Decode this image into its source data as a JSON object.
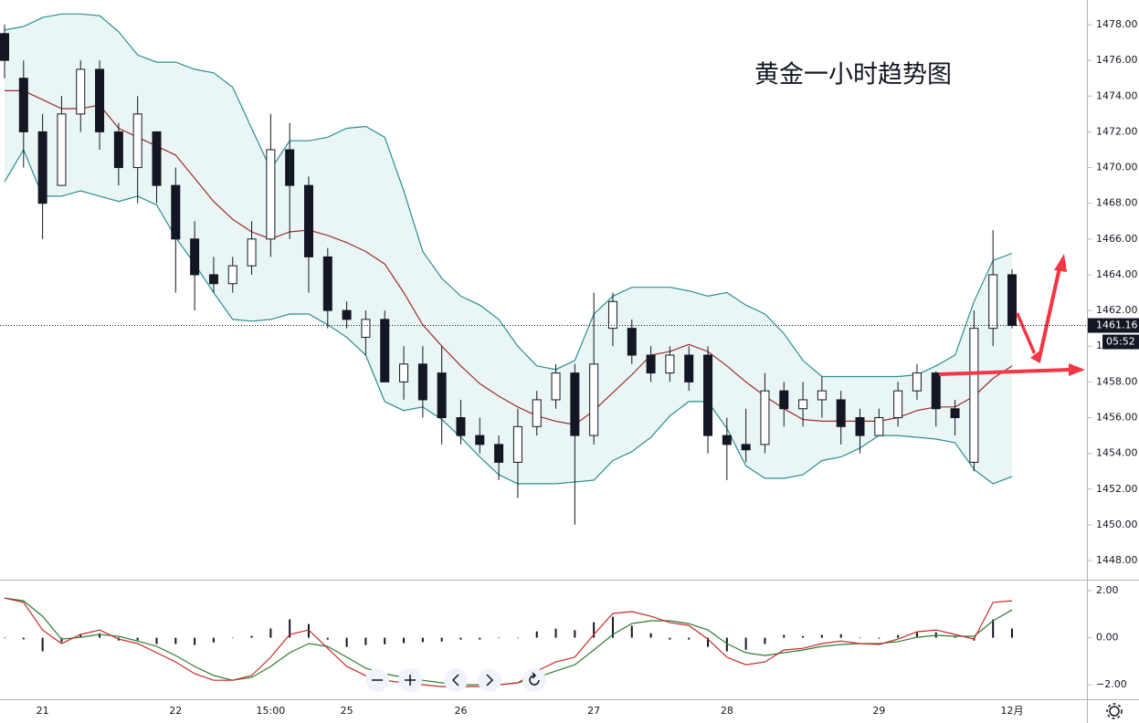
{
  "chart_data": [
    {
      "type": "candlestick",
      "title": "黄金一小时趋势图",
      "categories": [
        null,
        null,
        "21",
        null,
        null,
        null,
        null,
        null,
        null,
        "22",
        null,
        null,
        null,
        null,
        "15:00",
        null,
        null,
        null,
        "25",
        null,
        null,
        null,
        null,
        null,
        "26",
        null,
        null,
        null,
        null,
        null,
        null,
        "27",
        null,
        null,
        null,
        null,
        null,
        null,
        "28",
        null,
        null,
        null,
        null,
        null,
        null,
        null,
        "29",
        null,
        null,
        null,
        null,
        null,
        null,
        "12月"
      ],
      "ohlc": [
        [
          1477.5,
          1478,
          1475,
          1476
        ],
        [
          1475,
          1476,
          1470,
          1472
        ],
        [
          1472,
          1473,
          1466,
          1468
        ],
        [
          1469,
          1474,
          1469,
          1473
        ],
        [
          1473,
          1476,
          1472,
          1475.5
        ],
        [
          1475.5,
          1476,
          1471,
          1472
        ],
        [
          1472,
          1472.5,
          1469,
          1470
        ],
        [
          1470,
          1474,
          1468,
          1473
        ],
        [
          1472,
          1472,
          1468,
          1469
        ],
        [
          1469,
          1470,
          1463,
          1466
        ],
        [
          1466,
          1467,
          1462,
          1464
        ],
        [
          1464,
          1465,
          1463,
          1463.5
        ],
        [
          1463.5,
          1465,
          1463,
          1464.5
        ],
        [
          1464.5,
          1467,
          1464,
          1466
        ],
        [
          1466,
          1473,
          1465,
          1471
        ],
        [
          1471,
          1472.5,
          1466,
          1469
        ],
        [
          1469,
          1469.5,
          1463,
          1465
        ],
        [
          1465,
          1465.5,
          1461,
          1462
        ],
        [
          1462,
          1462.5,
          1461,
          1461.5
        ],
        [
          1460.5,
          1462,
          1459.5,
          1461.5
        ],
        [
          1461.5,
          1462,
          1458,
          1458
        ],
        [
          1458,
          1460,
          1457,
          1459
        ],
        [
          1459,
          1460,
          1456,
          1457
        ],
        [
          1458.5,
          1460,
          1454.5,
          1456
        ],
        [
          1456,
          1457,
          1454.5,
          1455
        ],
        [
          1455,
          1456,
          1454,
          1454.5
        ],
        [
          1454.5,
          1455,
          1452.5,
          1453.5
        ],
        [
          1453.5,
          1456.5,
          1451.5,
          1455.5
        ],
        [
          1455.5,
          1457.5,
          1455,
          1457
        ],
        [
          1457,
          1459,
          1456.5,
          1458.5
        ],
        [
          1458.5,
          1459,
          1450,
          1455
        ],
        [
          1455,
          1463,
          1454.5,
          1459
        ],
        [
          1461,
          1463,
          1460,
          1462.5
        ],
        [
          1461,
          1461.5,
          1459,
          1459.5
        ],
        [
          1459.5,
          1460,
          1458,
          1458.5
        ],
        [
          1458.5,
          1460,
          1458,
          1459.5
        ],
        [
          1459.5,
          1460,
          1457.5,
          1458
        ],
        [
          1459.5,
          1460,
          1454,
          1455
        ],
        [
          1455,
          1456,
          1452.5,
          1454.5
        ],
        [
          1454.5,
          1456.5,
          1453.5,
          1454.2
        ],
        [
          1454.5,
          1458.5,
          1454,
          1457.5
        ],
        [
          1457.5,
          1458,
          1455.5,
          1456.5
        ],
        [
          1456.5,
          1458,
          1455.5,
          1457
        ],
        [
          1457,
          1458.3,
          1456,
          1457.5
        ],
        [
          1457,
          1457.5,
          1454.5,
          1455.5
        ],
        [
          1456,
          1456.5,
          1454,
          1455
        ],
        [
          1455,
          1456.5,
          1455,
          1456
        ],
        [
          1456,
          1458,
          1455.5,
          1457.5
        ],
        [
          1457.5,
          1459,
          1457,
          1458.5
        ],
        [
          1458.5,
          1458.6,
          1455.5,
          1456.5
        ],
        [
          1456.5,
          1457,
          1455,
          1456
        ],
        [
          1453.5,
          1462,
          1453,
          1461
        ],
        [
          1461,
          1466.5,
          1460,
          1464
        ],
        [
          1464,
          1464.3,
          1461,
          1461.16
        ]
      ],
      "up_color": "#ffffff",
      "down_color": "#131722",
      "outline_color": "#131722",
      "bollinger": {
        "upper": [
          1477.7,
          1477.9,
          1478.4,
          1478.6,
          1478.6,
          1478.5,
          1477.6,
          1476.3,
          1475.9,
          1475.9,
          1475.5,
          1475.3,
          1474.5,
          1472.2,
          1469.9,
          1471.5,
          1471.5,
          1471.7,
          1472.2,
          1472.3,
          1471.7,
          1468.7,
          1465.3,
          1463.8,
          1462.8,
          1462.3,
          1461.5,
          1460,
          1458.9,
          1458.7,
          1459.2,
          1461.8,
          1462.8,
          1463.3,
          1463.3,
          1463.3,
          1463.1,
          1462.8,
          1463,
          1462.3,
          1461.8,
          1460.7,
          1459.2,
          1458.3,
          1458.3,
          1458.3,
          1458.3,
          1458.3,
          1458.4,
          1458.9,
          1459.5,
          1462.5,
          1464.8,
          1465.2
        ],
        "middle": [
          1474.3,
          1474.3,
          1473.8,
          1473.3,
          1473.3,
          1473.5,
          1472.2,
          1471.7,
          1471.2,
          1470.7,
          1469.4,
          1468.1,
          1467.1,
          1466.4,
          1466,
          1466.4,
          1466.5,
          1466.2,
          1465.8,
          1465.3,
          1464.6,
          1463,
          1461.2,
          1460,
          1458.9,
          1457.9,
          1457.2,
          1456.6,
          1456.1,
          1455.8,
          1455.6,
          1456.4,
          1457.4,
          1458.4,
          1459.5,
          1459.7,
          1460.1,
          1459.7,
          1458.9,
          1458,
          1457.2,
          1456.5,
          1455.9,
          1455.8,
          1455.8,
          1455.8,
          1455.8,
          1456,
          1456.4,
          1456.6,
          1456.6,
          1457.2,
          1458.2,
          1458.9
        ],
        "lower": [
          1469.2,
          1471,
          1468.4,
          1468.4,
          1468.7,
          1468.4,
          1468.1,
          1468.4,
          1467.9,
          1466.1,
          1464.6,
          1463,
          1461.5,
          1461.4,
          1461.5,
          1461.8,
          1461.8,
          1461.2,
          1460.5,
          1459.5,
          1456.9,
          1456.4,
          1456.6,
          1455.9,
          1454.9,
          1453.8,
          1452.8,
          1452.3,
          1452.3,
          1452.3,
          1452.4,
          1452.5,
          1453.6,
          1454.1,
          1454.9,
          1456.1,
          1456.9,
          1456.9,
          1455.4,
          1453.3,
          1452.6,
          1452.6,
          1452.8,
          1453.6,
          1453.8,
          1454.3,
          1455,
          1455,
          1454.9,
          1454.8,
          1454.6,
          1453.1,
          1452.3,
          1452.7
        ],
        "band_color": "#2b8f8f",
        "fill_color": "#eaf6f6",
        "middle_color": "#9c2b2b"
      },
      "ylim": [
        1446.93,
        1479.38
      ],
      "yticks": [
        {
          "value": 1448,
          "label": "1448.00"
        },
        {
          "value": 1450,
          "label": "1450.00"
        },
        {
          "value": 1452,
          "label": "1452.00"
        },
        {
          "value": 1454,
          "label": "1454.00"
        },
        {
          "value": 1456,
          "label": "1456.00"
        },
        {
          "value": 1458,
          "label": "1458.00"
        },
        {
          "value": 1460,
          "label": "1460.00"
        },
        {
          "value": 1462,
          "label": "1462.00"
        },
        {
          "value": 1464,
          "label": "1464.00"
        },
        {
          "value": 1466,
          "label": "1466.00"
        },
        {
          "value": 1468,
          "label": "1468.00"
        },
        {
          "value": 1470,
          "label": "1470.00"
        },
        {
          "value": 1472,
          "label": "1472.00"
        },
        {
          "value": 1474,
          "label": "1474.00"
        },
        {
          "value": 1476,
          "label": "1476.00"
        },
        {
          "value": 1478,
          "label": "1478.00"
        }
      ],
      "last_price": 1461.16,
      "countdown": "05:52"
    },
    {
      "type": "macd",
      "macd": [
        1.69,
        1.5,
        0.33,
        -0.25,
        0.14,
        0.33,
        -0.06,
        -0.25,
        -0.64,
        -1.03,
        -1.53,
        -1.81,
        -1.81,
        -1.61,
        -0.83,
        0.14,
        0.33,
        -0.45,
        -1.22,
        -1.61,
        -1.81,
        -1.92,
        -2,
        -2.08,
        -2.08,
        -2.08,
        -2,
        -1.92,
        -1.42,
        -1.03,
        -0.83,
        0.14,
        1.03,
        1.11,
        0.91,
        0.64,
        0.52,
        -0.06,
        -0.83,
        -1.15,
        -1.03,
        -0.52,
        -0.45,
        -0.25,
        -0.14,
        -0.25,
        -0.29,
        -0.06,
        0.25,
        0.33,
        0.14,
        -0.06,
        1.5,
        1.57
      ],
      "signal": [
        1.69,
        1.57,
        0.91,
        -0.06,
        0.02,
        0.14,
        0.06,
        -0.14,
        -0.37,
        -0.76,
        -1.22,
        -1.61,
        -1.81,
        -1.69,
        -1.22,
        -0.64,
        -0.25,
        -0.37,
        -0.83,
        -1.3,
        -1.53,
        -1.69,
        -1.81,
        -1.92,
        -2,
        -2,
        -2,
        -1.92,
        -1.69,
        -1.42,
        -1.15,
        -0.52,
        0.14,
        0.6,
        0.72,
        0.72,
        0.6,
        0.33,
        -0.25,
        -0.64,
        -0.76,
        -0.64,
        -0.52,
        -0.37,
        -0.29,
        -0.25,
        -0.25,
        -0.17,
        0.02,
        0.1,
        0.06,
        0.06,
        0.72,
        1.18
      ],
      "histogram": [
        0,
        -0.07,
        -0.58,
        -0.19,
        0.12,
        0.19,
        -0.12,
        -0.11,
        -0.27,
        -0.27,
        -0.31,
        -0.2,
        0,
        0.08,
        0.39,
        0.78,
        0.58,
        -0.08,
        -0.39,
        -0.31,
        -0.28,
        -0.23,
        -0.19,
        -0.16,
        -0.08,
        -0.08,
        0,
        0,
        0.27,
        0.39,
        0.32,
        0.66,
        0.89,
        0.51,
        0.19,
        -0.08,
        -0.08,
        -0.39,
        -0.58,
        -0.51,
        -0.27,
        0.12,
        0.07,
        0.12,
        0.15,
        0,
        -0.04,
        0.11,
        0.23,
        0.23,
        0.08,
        -0.12,
        0.78,
        0.39
      ],
      "macd_color": "#c62828",
      "signal_color": "#2e7d32",
      "histogram_color": "#131722",
      "ylim": [
        -2.58,
        2.43
      ],
      "yticks": [
        {
          "value": 2,
          "label": "2.00"
        },
        {
          "value": 0,
          "label": "0.00"
        },
        {
          "value": -2,
          "label": "−2.00"
        }
      ]
    }
  ]
}
